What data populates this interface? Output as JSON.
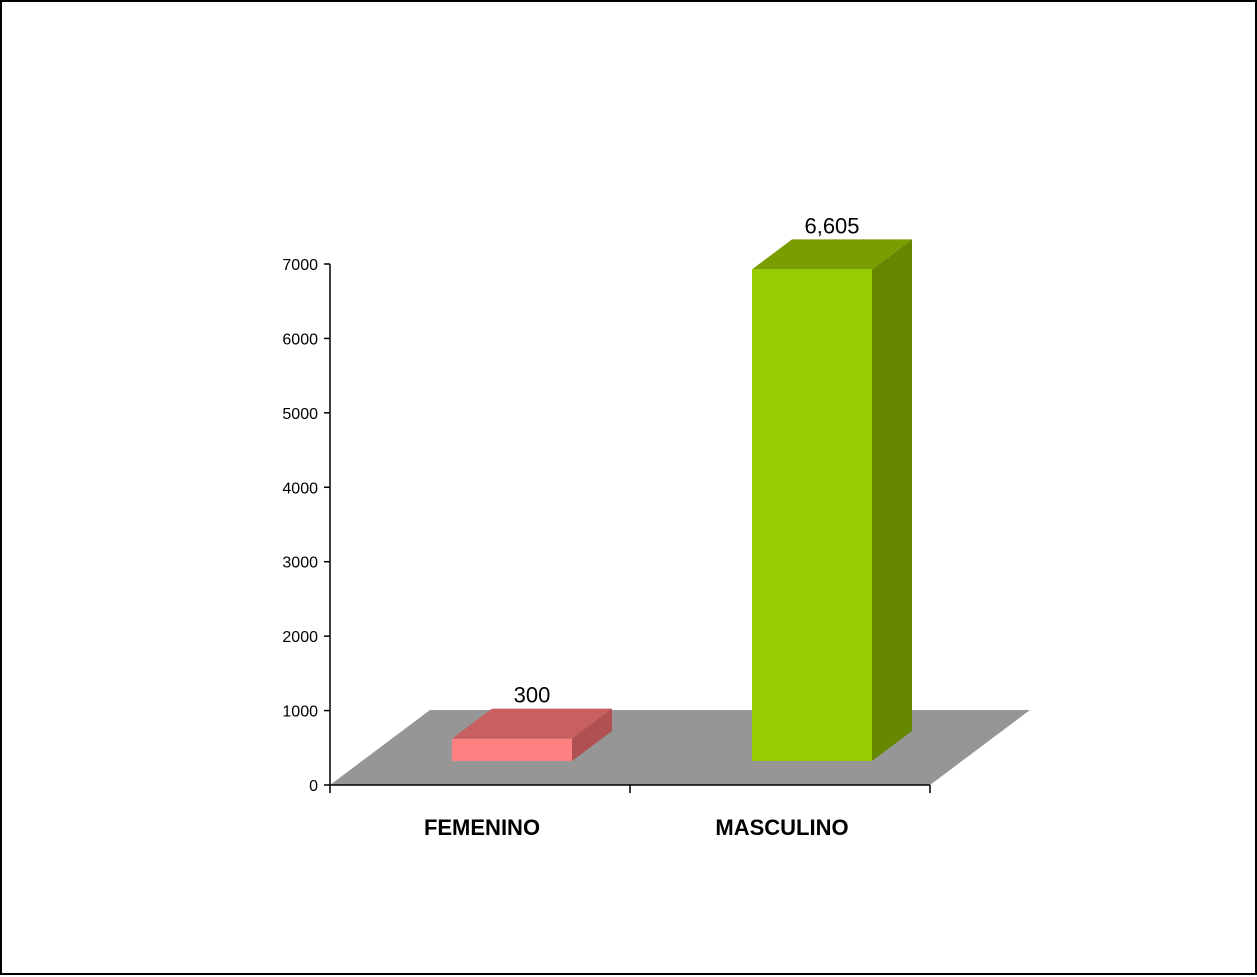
{
  "chart_data": {
    "type": "bar",
    "categories": [
      "FEMENINO",
      "MASCULINO"
    ],
    "values": [
      300,
      6605
    ],
    "data_labels": [
      "300",
      "6,605"
    ],
    "ylim": [
      0,
      7000
    ],
    "yticks": [
      "0",
      "1000",
      "2000",
      "3000",
      "4000",
      "5000",
      "6000",
      "7000"
    ],
    "grid": false,
    "legend": "none",
    "style": "3d",
    "colors": {
      "femenino_front": "#FF8080",
      "femenino_top": "#C86060",
      "femenino_side": "#B05050",
      "masculino_front": "#99CC00",
      "masculino_top": "#7A9E00",
      "masculino_side": "#668800",
      "floor": "#969696"
    }
  }
}
